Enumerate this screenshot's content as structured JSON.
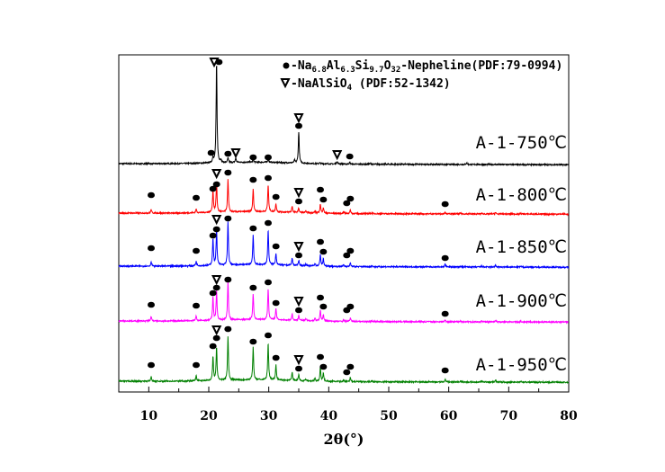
{
  "chart_data": {
    "type": "line",
    "title": "",
    "xlabel": "2θ(°)",
    "ylabel": "",
    "xlim": [
      5,
      80
    ],
    "ylim": [
      0,
      375
    ],
    "xticks": [
      10,
      20,
      30,
      40,
      50,
      60,
      70,
      80
    ],
    "grid": false,
    "legend": {
      "placement": "top-right",
      "entries": [
        {
          "symbol": "circle",
          "label": "-Na6.8Al6.3Si9.7O32-Nepheline(PDF:79-0994)"
        },
        {
          "symbol": "triangle",
          "label": "-NaAlSiO4 (PDF:52-1342)"
        }
      ]
    },
    "series": [
      {
        "name": "A-1-750℃",
        "color": "#000000",
        "offset": 254,
        "peaks": [
          [
            20.7,
            6
          ],
          [
            21.3,
            112
          ],
          [
            22.0,
            3
          ],
          [
            23.2,
            5
          ],
          [
            24.5,
            5
          ],
          [
            27.4,
            3
          ],
          [
            29.9,
            4
          ],
          [
            34.3,
            3
          ],
          [
            35.0,
            35
          ],
          [
            38.5,
            1
          ],
          [
            41.4,
            3
          ],
          [
            43.5,
            2
          ],
          [
            47.0,
            1
          ],
          [
            63.0,
            2
          ]
        ],
        "markers": [
          [
            "triangle",
            20.9,
            113
          ],
          [
            "circle",
            21.7,
            113
          ],
          [
            "circle",
            20.4,
            12
          ],
          [
            "circle",
            23.2,
            11
          ],
          [
            "triangle",
            24.5,
            12
          ],
          [
            "circle",
            27.4,
            7
          ],
          [
            "circle",
            29.9,
            7
          ],
          [
            "triangle",
            35.0,
            51
          ],
          [
            "circle",
            35.0,
            42
          ],
          [
            "triangle",
            41.4,
            10
          ],
          [
            "circle",
            43.5,
            8
          ]
        ]
      },
      {
        "name": "A-1-800℃",
        "color": "#ff0000",
        "offset": 199,
        "peaks": [
          [
            10.4,
            4
          ],
          [
            17.9,
            4
          ],
          [
            20.7,
            25
          ],
          [
            21.3,
            34
          ],
          [
            23.2,
            36
          ],
          [
            27.4,
            25
          ],
          [
            29.9,
            30
          ],
          [
            31.2,
            9
          ],
          [
            33.9,
            7
          ],
          [
            35.0,
            5
          ],
          [
            36.2,
            2
          ],
          [
            37.7,
            2
          ],
          [
            38.6,
            10
          ],
          [
            39.1,
            6
          ],
          [
            42.5,
            2
          ],
          [
            43.6,
            4
          ],
          [
            47.2,
            1
          ],
          [
            59.4,
            2
          ],
          [
            62.0,
            1
          ],
          [
            65.5,
            1
          ],
          [
            67.8,
            1.5
          ],
          [
            72.0,
            1
          ]
        ],
        "markers": [
          [
            "circle",
            10.4,
            20
          ],
          [
            "circle",
            17.9,
            17
          ],
          [
            "circle",
            20.7,
            27
          ],
          [
            "circle",
            21.3,
            32
          ],
          [
            "triangle",
            21.3,
            44
          ],
          [
            "circle",
            23.2,
            45
          ],
          [
            "circle",
            27.4,
            37
          ],
          [
            "circle",
            29.9,
            39
          ],
          [
            "circle",
            31.2,
            18
          ],
          [
            "circle",
            35.0,
            13
          ],
          [
            "triangle",
            35.0,
            23
          ],
          [
            "circle",
            38.6,
            26
          ],
          [
            "circle",
            39.1,
            15
          ],
          [
            "circle",
            43.0,
            11
          ],
          [
            "circle",
            43.6,
            16
          ],
          [
            "circle",
            59.4,
            10
          ]
        ]
      },
      {
        "name": "A-1-850℃",
        "color": "#0000ff",
        "offset": 140,
        "peaks": [
          [
            10.4,
            5
          ],
          [
            17.9,
            5
          ],
          [
            20.7,
            30
          ],
          [
            21.3,
            40
          ],
          [
            23.2,
            48
          ],
          [
            27.4,
            33
          ],
          [
            29.9,
            39
          ],
          [
            31.2,
            13
          ],
          [
            33.9,
            8
          ],
          [
            35.0,
            6
          ],
          [
            36.2,
            2
          ],
          [
            37.7,
            3
          ],
          [
            38.6,
            13
          ],
          [
            39.1,
            8
          ],
          [
            42.5,
            2
          ],
          [
            43.6,
            4
          ],
          [
            47.2,
            1
          ],
          [
            59.4,
            3
          ],
          [
            62.0,
            1
          ],
          [
            65.5,
            1
          ],
          [
            67.8,
            2
          ],
          [
            72.0,
            1
          ]
        ],
        "markers": [
          [
            "circle",
            10.4,
            20
          ],
          [
            "circle",
            17.9,
            17
          ],
          [
            "circle",
            20.7,
            34
          ],
          [
            "circle",
            21.3,
            41
          ],
          [
            "triangle",
            21.3,
            52
          ],
          [
            "circle",
            23.2,
            53
          ],
          [
            "circle",
            27.4,
            42
          ],
          [
            "circle",
            29.9,
            48
          ],
          [
            "circle",
            31.2,
            22
          ],
          [
            "circle",
            35.0,
            12
          ],
          [
            "triangle",
            35.0,
            22
          ],
          [
            "circle",
            38.6,
            27
          ],
          [
            "circle",
            39.1,
            16
          ],
          [
            "circle",
            43.0,
            12
          ],
          [
            "circle",
            43.6,
            17
          ],
          [
            "circle",
            59.4,
            9
          ]
        ]
      },
      {
        "name": "A-1-900℃",
        "color": "#ff00ff",
        "offset": 79,
        "peaks": [
          [
            10.4,
            5
          ],
          [
            17.9,
            5
          ],
          [
            20.7,
            26
          ],
          [
            21.3,
            33
          ],
          [
            23.2,
            43
          ],
          [
            27.4,
            29
          ],
          [
            29.9,
            35
          ],
          [
            31.2,
            12
          ],
          [
            33.9,
            7
          ],
          [
            35.0,
            6
          ],
          [
            36.2,
            2
          ],
          [
            37.7,
            3
          ],
          [
            38.6,
            12
          ],
          [
            39.1,
            7
          ],
          [
            42.5,
            2
          ],
          [
            43.6,
            4
          ],
          [
            47.2,
            1
          ],
          [
            59.4,
            2
          ],
          [
            62.0,
            1
          ],
          [
            65.5,
            1
          ],
          [
            67.8,
            2
          ],
          [
            72.0,
            1
          ]
        ],
        "markers": [
          [
            "circle",
            10.4,
            18
          ],
          [
            "circle",
            17.9,
            17
          ],
          [
            "circle",
            20.7,
            31
          ],
          [
            "circle",
            21.3,
            37
          ],
          [
            "triangle",
            21.3,
            46
          ],
          [
            "circle",
            23.2,
            46
          ],
          [
            "circle",
            27.4,
            37
          ],
          [
            "circle",
            29.9,
            43
          ],
          [
            "circle",
            31.2,
            20
          ],
          [
            "circle",
            35.0,
            12
          ],
          [
            "triangle",
            35.0,
            22
          ],
          [
            "circle",
            38.6,
            26
          ],
          [
            "circle",
            39.1,
            16
          ],
          [
            "circle",
            43.0,
            12
          ],
          [
            "circle",
            43.6,
            16
          ],
          [
            "circle",
            59.4,
            8
          ]
        ]
      },
      {
        "name": "A-1-950℃",
        "color": "#008000",
        "offset": 12,
        "peaks": [
          [
            10.4,
            5
          ],
          [
            17.9,
            6
          ],
          [
            20.7,
            27
          ],
          [
            21.3,
            37
          ],
          [
            23.2,
            49
          ],
          [
            27.4,
            36
          ],
          [
            29.9,
            41
          ],
          [
            31.2,
            17
          ],
          [
            33.9,
            9
          ],
          [
            35.0,
            7
          ],
          [
            36.2,
            2
          ],
          [
            37.7,
            3
          ],
          [
            38.6,
            15
          ],
          [
            39.1,
            9
          ],
          [
            42.5,
            2
          ],
          [
            43.6,
            5
          ],
          [
            47.2,
            1
          ],
          [
            59.4,
            3
          ],
          [
            62.0,
            1
          ],
          [
            65.5,
            1
          ],
          [
            67.8,
            2
          ],
          [
            72.0,
            1
          ]
        ],
        "markers": [
          [
            "circle",
            10.4,
            18
          ],
          [
            "circle",
            17.9,
            18
          ],
          [
            "circle",
            20.7,
            39
          ],
          [
            "circle",
            21.3,
            48
          ],
          [
            "triangle",
            21.3,
            57
          ],
          [
            "circle",
            23.2,
            58
          ],
          [
            "circle",
            27.4,
            44
          ],
          [
            "circle",
            29.9,
            51
          ],
          [
            "circle",
            31.2,
            26
          ],
          [
            "circle",
            35.0,
            14
          ],
          [
            "triangle",
            35.0,
            24
          ],
          [
            "circle",
            38.6,
            27
          ],
          [
            "circle",
            39.1,
            16
          ],
          [
            "circle",
            43.0,
            10
          ],
          [
            "circle",
            43.6,
            16
          ],
          [
            "circle",
            59.4,
            12
          ]
        ]
      }
    ]
  }
}
